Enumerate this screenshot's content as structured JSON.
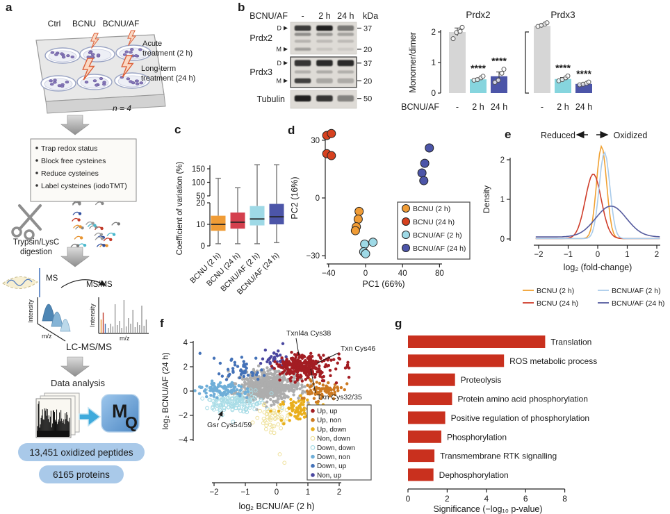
{
  "colors": {
    "orange": "#F09C36",
    "red": "#D13C30",
    "cyan": "#9ED9E6",
    "indigo": "#4C55A8",
    "bar_gray": "#D6D6D6",
    "bar_cyan": "#86D5DE",
    "go_red": "#C9301E",
    "pill_bg": "#A9C9E9",
    "blot_bg": "#DEDBD6"
  },
  "panels": {
    "a": {
      "label": "a",
      "plate_labels": [
        "Ctrl",
        "BCNU",
        "BCNU/AF"
      ],
      "treatment_lines": [
        "Acute",
        "treatment (2 h)",
        "Long-term",
        "treatment (24 h)"
      ],
      "n_label": "n = 4",
      "bullets": [
        "Trap redox status",
        "Block free cysteines",
        "Reduce cysteines",
        "Label cysteines (iodoTMT)"
      ],
      "digestion_lines": [
        "Trypsin/LysC",
        "digestion"
      ],
      "ms": "MS",
      "msms": "MS/MS",
      "intensity": "Intensity",
      "mz": "m/z",
      "lcmsms": "LC-MS/MS",
      "data_analysis": "Data analysis",
      "mq_letters": [
        "M",
        "Q"
      ],
      "pills": [
        "13,451 oxidized peptides",
        "6165 proteins"
      ]
    },
    "b": {
      "label": "b",
      "blot": {
        "row_header": "BCNU/AF",
        "lanes": [
          "-",
          "2 h",
          "24 h"
        ],
        "unit": "kDa",
        "rows": [
          {
            "name": "Prdx2",
            "boxed": false,
            "marks": [
              "D",
              "M"
            ],
            "mws": [
              "37",
              "20"
            ],
            "bands": [
              {
                "fy": 0.1,
                "fh": 0.17,
                "op": [
                  0.82,
                  0.95,
                  0.5
                ]
              },
              {
                "fy": 0.33,
                "fh": 0.1,
                "op": [
                  0.4,
                  0.36,
                  0.3
                ]
              },
              {
                "fy": 0.55,
                "fh": 0.09,
                "op": [
                  0.18,
                  0.15,
                  0.15
                ]
              },
              {
                "fy": 0.8,
                "fh": 0.09,
                "op": [
                  0.32,
                  0.1,
                  0.08
                ]
              }
            ]
          },
          {
            "name": "Prdx3",
            "boxed": true,
            "marks": [
              "D",
              "M"
            ],
            "mws": [
              "37",
              "20"
            ],
            "bands": [
              {
                "fy": 0.1,
                "fh": 0.2,
                "op": [
                  0.85,
                  0.9,
                  0.9
                ]
              },
              {
                "fy": 0.44,
                "fh": 0.1,
                "op": [
                  0.2,
                  0.22,
                  0.2
                ]
              },
              {
                "fy": 0.7,
                "fh": 0.16,
                "op": [
                  0.8,
                  0.28,
                  0.22
                ]
              }
            ]
          },
          {
            "name": "Tubulin",
            "boxed": false,
            "marks": [],
            "mws": [
              "50"
            ],
            "bands": [
              {
                "fy": 0.28,
                "fh": 0.34,
                "op": [
                  0.95,
                  0.85,
                  0.45
                ]
              }
            ]
          }
        ]
      }
    },
    "c": {
      "label": "c"
    },
    "d": {
      "label": "d"
    },
    "e": {
      "label": "e"
    },
    "f": {
      "label": "f"
    },
    "g": {
      "label": "g"
    }
  },
  "chart_data": [
    {
      "id": "b_prdx2",
      "type": "bar",
      "title": "Prdx2",
      "ylabel": "Monomer/dimer",
      "ylim": [
        0,
        2.4
      ],
      "yticks": [
        0,
        1,
        2
      ],
      "group_label": "BCNU/AF",
      "categories": [
        "-",
        "2 h",
        "24 h"
      ],
      "values": [
        2.0,
        0.45,
        0.55
      ],
      "errors": [
        0.13,
        0.04,
        0.14
      ],
      "points": [
        [
          1.78,
          1.98,
          2.02,
          2.15
        ],
        [
          0.42,
          0.44,
          0.5,
          0.55
        ],
        [
          0.35,
          0.42,
          0.65,
          0.78
        ]
      ],
      "sig": [
        "",
        "****",
        "****"
      ],
      "bar_colors": [
        "#D6D6D6",
        "#86D5DE",
        "#4C55A8"
      ]
    },
    {
      "id": "b_prdx3",
      "type": "bar",
      "title": "Prdx3",
      "ylabel": "Monomer/dimer",
      "ylim": [
        0,
        2.4
      ],
      "yticks": [
        0,
        1,
        2
      ],
      "categories": [
        "-",
        "2 h",
        "24 h"
      ],
      "values": [
        2.2,
        0.46,
        0.3
      ],
      "errors": [
        0.05,
        0.05,
        0.03
      ],
      "points": [
        [
          2.18,
          2.22,
          2.26,
          2.3
        ],
        [
          0.4,
          0.44,
          0.5,
          0.56
        ],
        [
          0.27,
          0.29,
          0.32,
          0.36
        ]
      ],
      "sig": [
        "",
        "****",
        "****"
      ],
      "bar_colors": [
        "#D6D6D6",
        "#86D5DE",
        "#4C55A8"
      ]
    },
    {
      "id": "c_cv",
      "type": "box",
      "ylabel": "Coefficient of variation (%)",
      "yticks_lower": [
        0,
        10,
        20
      ],
      "yticks_upper": [
        50,
        100,
        150
      ],
      "categories": [
        "BCNU (2 h)",
        "BCNU (24 h)",
        "BCNU/AF (2 h)",
        "BCNU/AF (24 h)"
      ],
      "boxes": [
        {
          "q1": 7,
          "median": 10,
          "q3": 14,
          "lo": 1,
          "hi": 115,
          "color": "#F09C36"
        },
        {
          "q1": 8,
          "median": 11,
          "q3": 15.5,
          "lo": 1,
          "hi": 80,
          "color": "#D4404E"
        },
        {
          "q1": 9.5,
          "median": 12.5,
          "q3": 18.5,
          "lo": 1,
          "hi": 165,
          "color": "#9ED9E6"
        },
        {
          "q1": 10,
          "median": 13.5,
          "q3": 19.5,
          "lo": 1.5,
          "hi": 165,
          "color": "#4C55A8"
        }
      ]
    },
    {
      "id": "d_pca",
      "type": "scatter",
      "xlabel": "PC1 (66%)",
      "ylabel": "PC2 (16%)",
      "xticks": [
        -40,
        0,
        40,
        80
      ],
      "yticks": [
        -30,
        0,
        30
      ],
      "xlim": [
        -50,
        85
      ],
      "ylim": [
        -33,
        37
      ],
      "series": [
        {
          "name": "BCNU (2 h)",
          "color": "#F09C36",
          "points": [
            [
              -7,
              -7
            ],
            [
              -8,
              -11
            ],
            [
              -10,
              -15
            ],
            [
              -11,
              -17
            ]
          ]
        },
        {
          "name": "BCNU (24 h)",
          "color": "#D6411F",
          "points": [
            [
              -42,
              32.5
            ],
            [
              -37,
              33.5
            ],
            [
              -42,
              23
            ],
            [
              -37,
              22
            ]
          ]
        },
        {
          "name": "BCNU/AF (2 h)",
          "color": "#9ED9E6",
          "points": [
            [
              8,
              -23
            ],
            [
              -1,
              -24
            ],
            [
              -2,
              -28
            ],
            [
              0,
              -29
            ]
          ]
        },
        {
          "name": "BCNU/AF (24 h)",
          "color": "#4C55A8",
          "points": [
            [
              69,
              26
            ],
            [
              64,
              18
            ],
            [
              61,
              13
            ],
            [
              63,
              9
            ]
          ]
        }
      ]
    },
    {
      "id": "e_density",
      "type": "line",
      "left_label": "Reduced",
      "right_label": "Oxidized",
      "xlabel": "log₂ (fold-change)",
      "ylabel": "Density",
      "xticks": [
        -2,
        -1,
        0,
        1,
        2
      ],
      "yticks": [
        0,
        1,
        2
      ],
      "xlim": [
        -2.1,
        2.1
      ],
      "ylim": [
        0,
        2.45
      ],
      "series": [
        {
          "name": "BCNU (2 h)",
          "color": "#F0A030",
          "mean": 0.13,
          "sd": 0.17,
          "height": 2.33,
          "baseline": 0.01
        },
        {
          "name": "BCNU (24 h)",
          "color": "#CF3D2A",
          "mean": -0.15,
          "sd": 0.27,
          "height": 1.63,
          "baseline": 0.01
        },
        {
          "name": "BCNU/AF (2 h)",
          "color": "#A9CBEA",
          "mean": 0.23,
          "sd": 0.18,
          "height": 2.18,
          "baseline": 0.01
        },
        {
          "name": "BCNU/AF (24 h)",
          "color": "#555B9E",
          "mean": 0.45,
          "sd": 0.52,
          "height": 0.78,
          "baseline": 0.05
        }
      ]
    },
    {
      "id": "f_scatter",
      "type": "scatter",
      "xlabel": "log₂ BCNU/AF (2 h)",
      "ylabel": "log₂ BCNU/AF (24 h)",
      "xticks": [
        -2,
        -1,
        0,
        1,
        2
      ],
      "yticks": [
        -4,
        -2,
        0,
        2,
        4
      ],
      "xlim": [
        -2.9,
        2.4
      ],
      "ylim": [
        -6.2,
        4.3
      ],
      "classes": {
        "grey": {
          "color": "#ADADAD",
          "open": false
        },
        "up_up": {
          "color": "#A31D23",
          "open": false
        },
        "up_non": {
          "color": "#CC7A22",
          "open": false
        },
        "up_down": {
          "color": "#E9AF1C",
          "open": false
        },
        "non_down": {
          "color": "#EFE19B",
          "open": true
        },
        "down_down": {
          "color": "#A8DCE6",
          "open": true
        },
        "down_non": {
          "color": "#6FAED8",
          "open": false
        },
        "down_up": {
          "color": "#4472B8",
          "open": false
        },
        "non_up": {
          "color": "#4A47A0",
          "open": false
        }
      },
      "legend": [
        {
          "label": "Up, up",
          "cls": "up_up"
        },
        {
          "label": "Up, non",
          "cls": "up_non"
        },
        {
          "label": "Up, down",
          "cls": "up_down"
        },
        {
          "label": "Non, down",
          "cls": "non_down"
        },
        {
          "label": "Down, down",
          "cls": "down_down"
        },
        {
          "label": "Down, non",
          "cls": "down_non"
        },
        {
          "label": "Down, up",
          "cls": "down_up"
        },
        {
          "label": "Non, up",
          "cls": "non_up"
        }
      ],
      "clusters": [
        {
          "cls": "grey",
          "n": 620,
          "cx": -0.3,
          "cy": 0.45,
          "sx": 0.5,
          "sy": 0.6
        },
        {
          "cls": "down_down",
          "n": 150,
          "cx": -1.35,
          "cy": -0.95,
          "sx": 0.45,
          "sy": 0.5
        },
        {
          "cls": "non_down",
          "n": 55,
          "cx": -0.1,
          "cy": -2.1,
          "sx": 0.28,
          "sy": 0.55
        },
        {
          "cls": "down_non",
          "n": 85,
          "cx": -1.7,
          "cy": 0.1,
          "sx": 0.38,
          "sy": 0.33
        },
        {
          "cls": "down_up",
          "n": 45,
          "cx": -1.1,
          "cy": 1.75,
          "sx": 0.35,
          "sy": 0.45
        },
        {
          "cls": "non_up",
          "n": 32,
          "cx": 0.0,
          "cy": 2.6,
          "sx": 0.22,
          "sy": 0.4
        },
        {
          "cls": "up_down",
          "n": 80,
          "cx": 0.7,
          "cy": -1.5,
          "sx": 0.3,
          "sy": 0.5
        },
        {
          "cls": "up_non",
          "n": 80,
          "cx": 1.45,
          "cy": -0.05,
          "sx": 0.33,
          "sy": 0.35
        },
        {
          "cls": "up_up",
          "n": 270,
          "cx": 0.75,
          "cy": 2.0,
          "sx": 0.33,
          "sy": 0.5
        },
        {
          "cls": "up_up",
          "n": 45,
          "cx": 1.5,
          "cy": 2.1,
          "sx": 0.45,
          "sy": 0.6
        }
      ],
      "outliers": [
        {
          "cls": "down_up",
          "x": -2.45,
          "y": 3.1
        },
        {
          "cls": "down_up",
          "x": -2.0,
          "y": 2.7
        },
        {
          "cls": "non_up",
          "x": 0.2,
          "y": 3.9
        },
        {
          "cls": "down_down",
          "x": -1.9,
          "y": -1.45
        },
        {
          "cls": "down_down",
          "x": -1.8,
          "y": -1.6
        },
        {
          "cls": "non_down",
          "x": 0.1,
          "y": -5.2
        },
        {
          "cls": "non_down",
          "x": 0.25,
          "y": -5.9
        },
        {
          "cls": "up_up",
          "x": 1.95,
          "y": 2.3
        },
        {
          "cls": "up_up",
          "x": 2.2,
          "y": 1.9
        },
        {
          "cls": "up_non",
          "x": 2.25,
          "y": 0.6
        }
      ],
      "annotations": [
        {
          "text": "Txnl4a Cys38"
        },
        {
          "text": "Txn Cys46"
        },
        {
          "text": "Txn Cys32/35"
        },
        {
          "text": "Gsr Cys54/59"
        }
      ]
    },
    {
      "id": "g_go",
      "type": "bar",
      "orientation": "horizontal",
      "xlabel": "Significance (−log₁₀ p-value)",
      "xticks": [
        0,
        2,
        4,
        6,
        8
      ],
      "xlim": [
        0,
        8
      ],
      "color": "#C9301E",
      "categories": [
        "Translation",
        "ROS metabolic process",
        "Proteolysis",
        "Protein amino acid phosphorylation",
        "Positive regulation of phosphorylation",
        "Phosphorylation",
        "Transmembrane RTK signalling",
        "Dephosphorylation"
      ],
      "values": [
        7.0,
        4.9,
        2.4,
        2.25,
        1.9,
        1.7,
        1.35,
        1.3
      ]
    }
  ]
}
